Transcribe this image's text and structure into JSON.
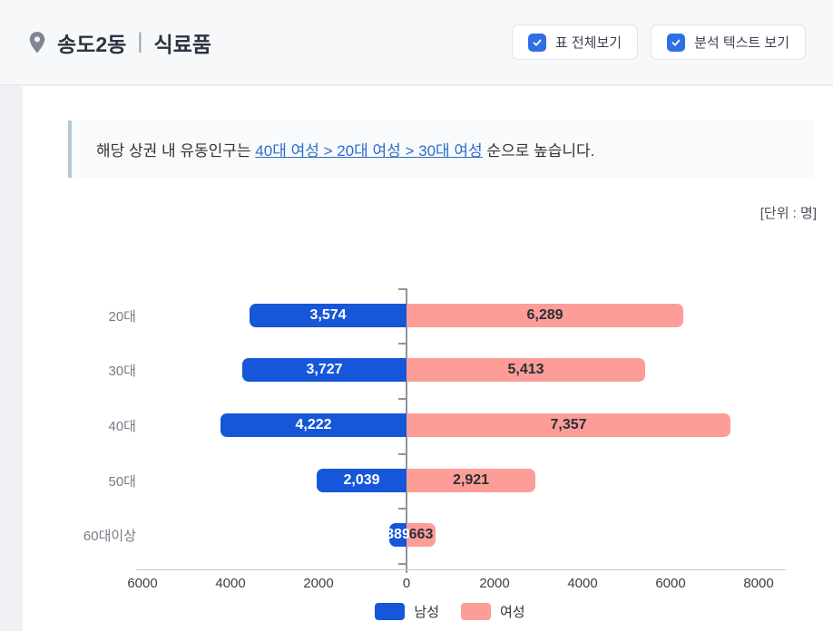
{
  "header": {
    "location": "송도2동",
    "separator": "|",
    "category": "식료품",
    "buttons": [
      {
        "label": "표 전체보기",
        "checked": true
      },
      {
        "label": "분석 텍스트 보기",
        "checked": true
      }
    ]
  },
  "analysis": {
    "prefix": "해당 상권 내 유동인구는 ",
    "highlight": "40대 여성 > 20대 여성 > 30대 여성",
    "suffix": " 순으로 높습니다."
  },
  "unit_label": "[단위 : 명]",
  "chart_data": {
    "type": "bar",
    "variant": "horizontal-diverging population pyramid",
    "title": "",
    "categories": [
      "20대",
      "30대",
      "40대",
      "50대",
      "60대이상"
    ],
    "series": [
      {
        "name": "남성",
        "color": "#1656d8",
        "values": [
          3574,
          3727,
          4222,
          2039,
          389
        ],
        "value_labels": [
          "3,574",
          "3,727",
          "4,222",
          "2,039",
          "389"
        ]
      },
      {
        "name": "여성",
        "color": "#fc9d98",
        "values": [
          6289,
          5413,
          7357,
          2921,
          663
        ],
        "value_labels": [
          "6,289",
          "5,413",
          "7,357",
          "2,921",
          "663"
        ]
      }
    ],
    "x_axis": {
      "left_max": 6000,
      "right_max": 8000,
      "tick_step": 2000,
      "tick_labels": [
        "6000",
        "4000",
        "2000",
        "0",
        "2000",
        "4000",
        "6000",
        "8000"
      ]
    },
    "legend": {
      "position": "bottom",
      "entries": [
        "남성",
        "여성"
      ]
    },
    "unit": "명",
    "grid": false
  },
  "colors": {
    "male_bar": "#1656d8",
    "female_bar": "#fc9d98",
    "checkbox_blue": "#2e6fe3",
    "link_blue": "#2d6cc9",
    "header_bg": "#f7f8fa",
    "analysis_box_bg": "#f8fafb",
    "analysis_box_border": "#b6c8d6"
  }
}
